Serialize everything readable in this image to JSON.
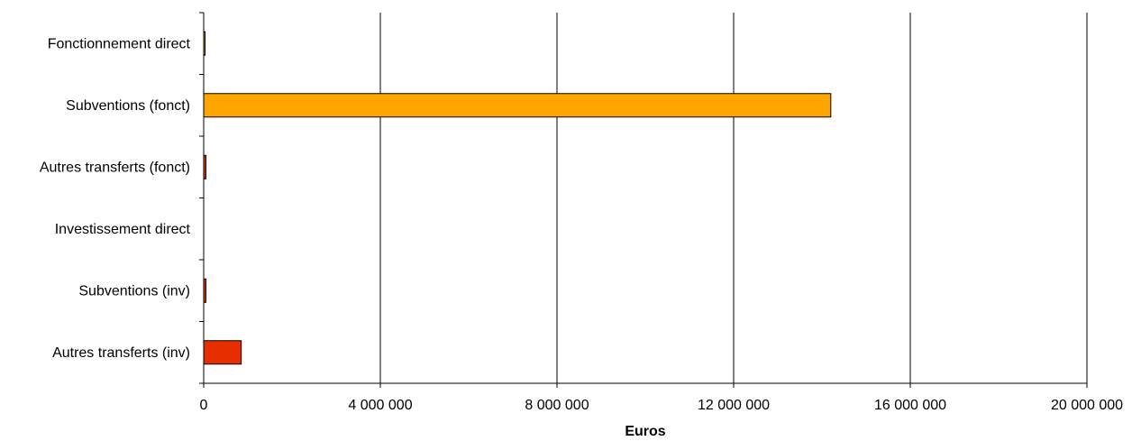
{
  "chart_data": {
    "type": "bar",
    "orientation": "horizontal",
    "title": "",
    "xlabel": "Euros",
    "ylabel": "",
    "categories": [
      "Fonctionnement direct",
      "Subventions (fonct)",
      "Autres transferts (fonct)",
      "Investissement direct",
      "Subventions (inv)",
      "Autres transferts (inv)"
    ],
    "values": [
      20000,
      14200000,
      50000,
      0,
      50000,
      850000
    ],
    "bar_colors": [
      "#ffa500",
      "#ffa500",
      "#e62e00",
      "#e62e00",
      "#e62e00",
      "#e62e00"
    ],
    "xlim": [
      0,
      20000000
    ],
    "xticks": [
      0,
      4000000,
      8000000,
      12000000,
      16000000,
      20000000
    ],
    "xtick_labels": [
      "0",
      "4 000 000",
      "8 000 000",
      "12 000 000",
      "16 000 000",
      "20 000 000"
    ],
    "grid": "vertical",
    "legend": "none"
  }
}
